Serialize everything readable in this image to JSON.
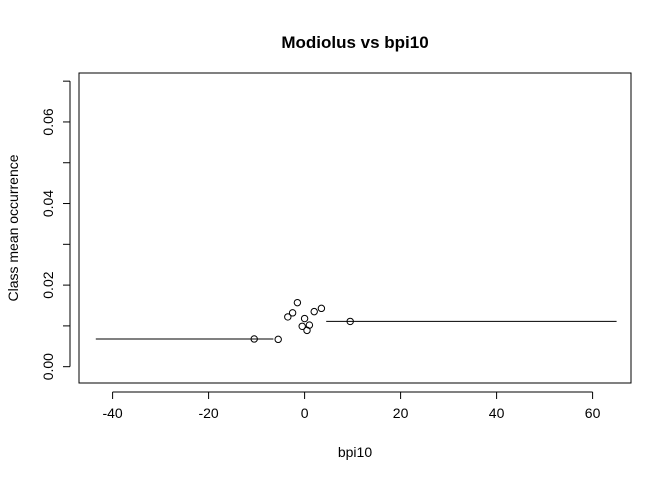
{
  "chart_data": {
    "type": "scatter",
    "title": "Modiolus vs bpi10",
    "xlabel": "bpi10",
    "ylabel": "Class mean occurrence",
    "xlim": [
      -47,
      68
    ],
    "ylim": [
      -0.004,
      0.072
    ],
    "xticks": [
      -40,
      -20,
      0,
      20,
      40,
      60
    ],
    "xtick_labels": [
      "-40",
      "-20",
      "0",
      "20",
      "40",
      "60"
    ],
    "yticks": [
      0.0,
      0.02,
      0.04,
      0.06
    ],
    "ytick_labels": [
      "0.00",
      "0.02",
      "0.04",
      "0.06"
    ],
    "yticks_minor": [
      0.01,
      0.03,
      0.05,
      0.07
    ],
    "grid": false,
    "points": [
      {
        "x": -10.5,
        "y": 0.0068
      },
      {
        "x": -5.5,
        "y": 0.0067
      },
      {
        "x": -3.5,
        "y": 0.0122
      },
      {
        "x": -2.5,
        "y": 0.0132
      },
      {
        "x": -1.5,
        "y": 0.0157
      },
      {
        "x": -0.5,
        "y": 0.0099
      },
      {
        "x": 0.0,
        "y": 0.0118
      },
      {
        "x": 0.5,
        "y": 0.0089
      },
      {
        "x": 1.0,
        "y": 0.0102
      },
      {
        "x": 2.0,
        "y": 0.0135
      },
      {
        "x": 3.5,
        "y": 0.0143
      },
      {
        "x": 9.5,
        "y": 0.0111
      }
    ],
    "segments": [
      {
        "x0": -43.5,
        "x1": -6.5,
        "y": 0.0068
      },
      {
        "x0": 4.5,
        "x1": 65.0,
        "y": 0.0111
      }
    ]
  }
}
